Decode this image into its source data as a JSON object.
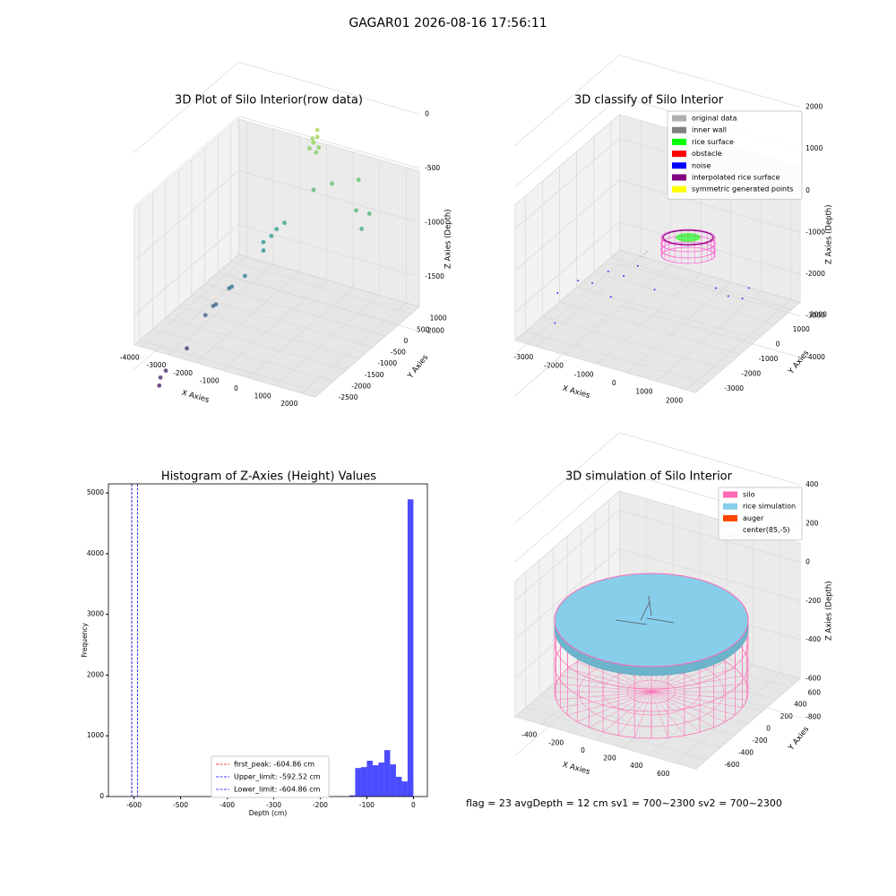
{
  "title": "GAGAR01 2026-08-16 17:56:11",
  "footer": "flag = 23  avgDepth = 12 cm    sv1 = 700~2300  sv2 = 700~2300",
  "chart_data": [
    {
      "type": "scatter3d",
      "title": "3D Plot of Silo Interior(row data)",
      "xlabel": "X Axies",
      "ylabel": "Y Axies",
      "zlabel": "Z Axies (Depth)",
      "colormap": "viridis",
      "xlim": [
        -4300,
        2500
      ],
      "ylim": [
        -2700,
        1300
      ],
      "zlim": [
        -2400,
        100
      ],
      "xticks": [
        -4000,
        -3000,
        -2000,
        -1000,
        0,
        1000,
        2000
      ],
      "yticks": [
        -2500,
        -2000,
        -1500,
        -1000,
        -500,
        0,
        500,
        1000
      ],
      "zticks": [
        -2000,
        -1500,
        -1000,
        -500,
        0
      ],
      "series": [
        {
          "x": [
            -4000,
            -3950,
            -3900,
            -3500,
            -3000,
            -2900,
            -2700,
            -2500,
            -2300,
            -2100,
            -1800,
            -1600,
            -1500,
            -1300,
            -1700,
            -500,
            0,
            1200,
            1500,
            1600,
            800,
            -800,
            -700,
            -900,
            -750,
            -600,
            -850,
            -650
          ],
          "y": [
            -2000,
            -2100,
            -1900,
            -1500,
            -1300,
            -1100,
            -1200,
            -900,
            -1000,
            -700,
            -300,
            -200,
            -100,
            0,
            -400,
            300,
            500,
            200,
            400,
            0,
            700,
            600,
            650,
            550,
            700,
            600,
            620,
            550
          ],
          "z": [
            -2200,
            -2250,
            -2150,
            -2000,
            -1700,
            -1650,
            -1600,
            -1500,
            -1450,
            -1400,
            -1150,
            -1100,
            -1050,
            -1000,
            -1200,
            -700,
            -650,
            -750,
            -800,
            -850,
            -600,
            -350,
            -300,
            -400,
            -250,
            -380,
            -320,
            -420
          ]
        }
      ]
    },
    {
      "type": "scatter3d",
      "title": "3D classify of Silo Interior",
      "xlabel": "X Axies",
      "ylabel": "Y Axies",
      "zlabel": "Z Axies (Depth)",
      "xlim": [
        -3700,
        2300
      ],
      "ylim": [
        -3600,
        2500
      ],
      "zlim": [
        -4300,
        2200
      ],
      "xticks": [
        -3000,
        -2000,
        -1000,
        0,
        1000,
        2000
      ],
      "yticks": [
        -3000,
        -2000,
        -1000,
        0,
        1000,
        2000
      ],
      "zticks": [
        -4000,
        -3000,
        -2000,
        -1000,
        0,
        1000,
        2000
      ],
      "legend": "upper right",
      "series": [
        {
          "name": "original data",
          "color": "#b0b0b0",
          "x": [
            -1300,
            -1250,
            -1200
          ],
          "y": [
            -400,
            -350,
            -300
          ],
          "z": [
            -1300,
            -1250,
            -1200
          ]
        },
        {
          "name": "inner wall",
          "color": "#808080"
        },
        {
          "name": "rice surface",
          "color": "#00ff00"
        },
        {
          "name": "obstacle",
          "color": "#ff0000"
        },
        {
          "name": "noise",
          "color": "#0000ff",
          "x": [
            -3200,
            -2800,
            -2500,
            -2200,
            -1800,
            -1500,
            -1000,
            1200,
            1500,
            1800,
            1900,
            -3000,
            -2000
          ],
          "y": [
            -2000,
            -1500,
            -1200,
            -800,
            -600,
            -300,
            -200,
            -500,
            -300,
            0,
            200,
            -2500,
            -1000
          ],
          "z": [
            -2000,
            -1800,
            -1900,
            -1700,
            -1800,
            -1600,
            -2100,
            -1500,
            -1700,
            -1800,
            -1600,
            -2500,
            -2200
          ]
        },
        {
          "name": "interpolated rice surface",
          "color": "#800080"
        },
        {
          "name": "symmetric generated points",
          "color": "#ffff00"
        }
      ]
    },
    {
      "type": "histogram",
      "title": "Histogram of Z-Axies (Height) Values",
      "xlabel": "Depth (cm)",
      "ylabel": "Frequency",
      "color": "#4b4bff",
      "bins": [
        -137.5,
        -125,
        -112.5,
        -100,
        -87.5,
        -75,
        -62.5,
        -50,
        -37.5,
        -25,
        -12.5,
        0
      ],
      "values": [
        20,
        470,
        485,
        590,
        515,
        560,
        765,
        530,
        325,
        250,
        4895
      ],
      "xlim": [
        -655,
        30
      ],
      "ylim": [
        0,
        5150
      ],
      "xticks": [
        -600,
        -500,
        -400,
        -300,
        -200,
        -100,
        0
      ],
      "yticks": [
        0,
        1000,
        2000,
        3000,
        4000,
        5000
      ],
      "legend": "lower right",
      "lines": [
        {
          "name": "first_peak: -604.86 cm",
          "value": -604.86,
          "color": "#ff0000"
        },
        {
          "name": "Upper_limit: -592.52 cm",
          "value": -592.52,
          "color": "#0000ff"
        },
        {
          "name": "Lower_limit: -604.86 cm",
          "value": -604.86,
          "color": "#0000ff"
        }
      ]
    },
    {
      "type": "surface3d",
      "title": "3D simulation of Silo Interior",
      "xlabel": "X Axies",
      "ylabel": "Y Axies",
      "zlabel": "Z Axies (Depth)",
      "xlim": [
        -600,
        750
      ],
      "ylim": [
        -750,
        750
      ],
      "zlim": [
        -950,
        450
      ],
      "xticks": [
        -400,
        -200,
        0,
        200,
        400,
        600
      ],
      "yticks": [
        -600,
        -400,
        -200,
        0,
        200,
        400,
        600
      ],
      "zticks": [
        -800,
        -600,
        -400,
        -200,
        0,
        200,
        400
      ],
      "legend": "upper right",
      "series": [
        {
          "name": "silo",
          "color": "#ff69b4"
        },
        {
          "name": "rice simulation",
          "color": "#87ceeb"
        },
        {
          "name": "auger",
          "color": "#ff4500"
        },
        {
          "name": "center(85,-5)",
          "color": "#ffffff"
        }
      ]
    }
  ]
}
